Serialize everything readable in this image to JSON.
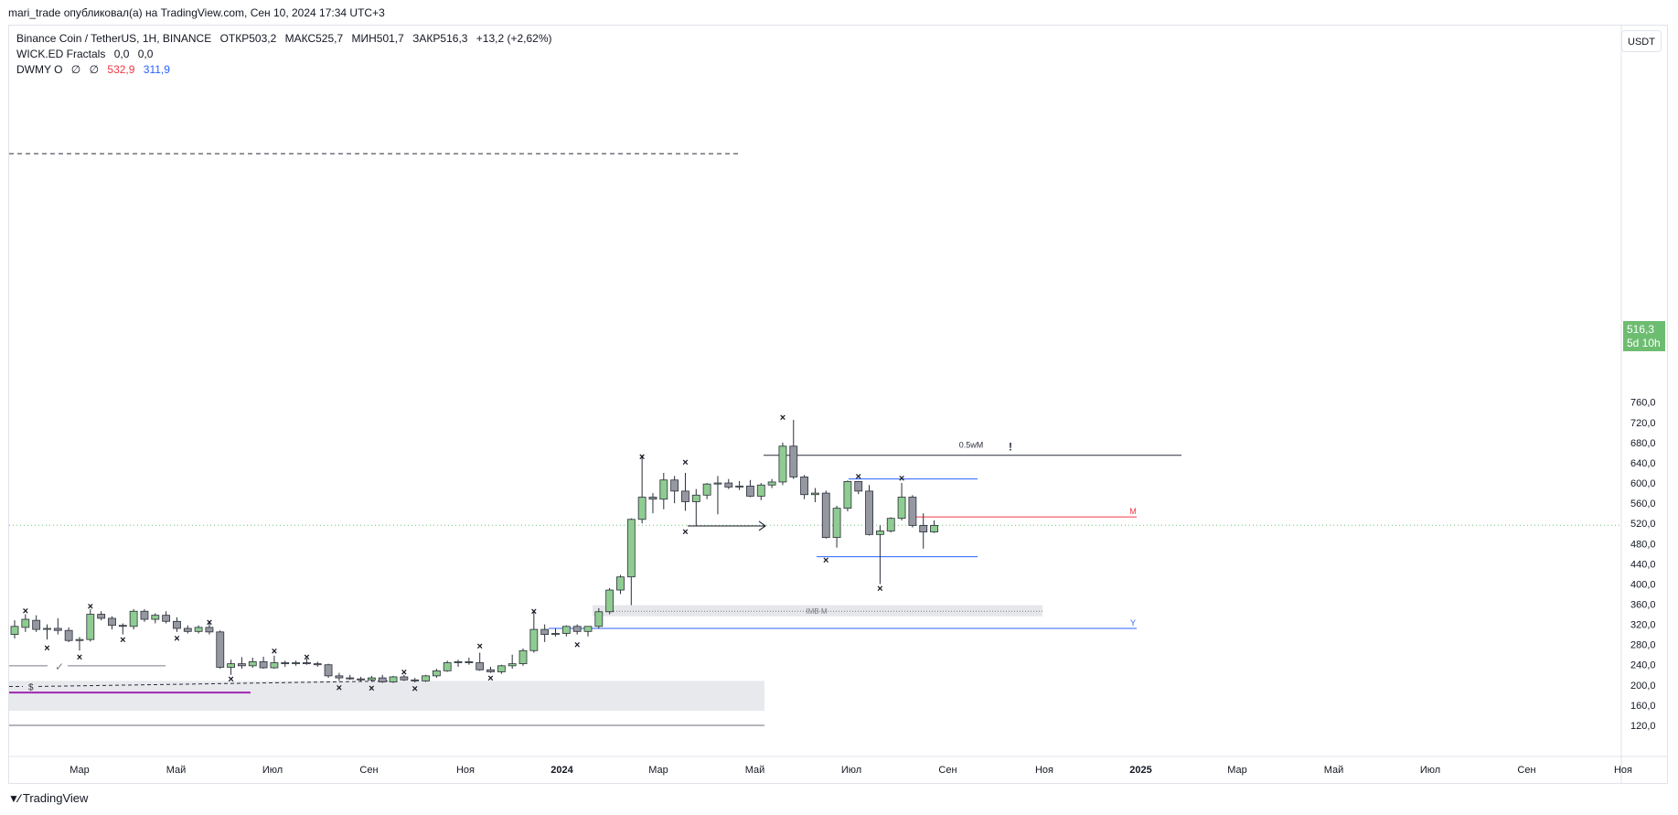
{
  "header": {
    "published": "mari_trade опубликовал(а) на TradingView.com, Сен 10, 2024 17:34 UTC+3"
  },
  "legend": {
    "symbol": "Binance Coin / TetherUS, 1H, BINANCE",
    "open": "ОТКР503,2",
    "high": "МАКС525,7",
    "low": "МИН501,7",
    "close": "ЗАКР516,3",
    "change": "+13,2 (+2,62%)",
    "ind1_name": "WICK.ED Fractals",
    "ind1_v1": "0,0",
    "ind1_v2": "0,0",
    "ind2_name": "DWMY O",
    "ind2_v1": "∅",
    "ind2_v2": "∅",
    "ind2_v3": "532,9",
    "ind2_v4": "311,9"
  },
  "price_axis": {
    "currency": "USDT",
    "last_price": "516,3",
    "countdown": "5d 10h"
  },
  "footer": {
    "brand": "TradingView"
  },
  "colors": {
    "up": "#8fcc91",
    "down": "#9598a1",
    "outline": "#2a2e39",
    "blue_level": "#2962ff",
    "red_level": "#f23645",
    "purple_level": "#9c27b0"
  },
  "chart_data": {
    "type": "candlestick",
    "symbol": "Binance Coin / TetherUS",
    "ylim": [
      100,
      780
    ],
    "y_ticks": [
      120,
      160,
      200,
      240,
      280,
      320,
      360,
      400,
      440,
      480,
      520,
      560,
      600,
      640,
      680,
      720,
      760
    ],
    "y_tick_labels": [
      "120,0",
      "160,0",
      "200,0",
      "240,0",
      "280,0",
      "320,0",
      "360,0",
      "400,0",
      "440,0",
      "480,0",
      "520,0",
      "560,0",
      "600,0",
      "640,0",
      "680,0",
      "720,0",
      "760,0"
    ],
    "x_ticks": [
      {
        "label": "Мар",
        "bold": false
      },
      {
        "label": "Май",
        "bold": false
      },
      {
        "label": "Июл",
        "bold": false
      },
      {
        "label": "Сен",
        "bold": false
      },
      {
        "label": "Ноя",
        "bold": false
      },
      {
        "label": "2024",
        "bold": true
      },
      {
        "label": "Мар",
        "bold": false
      },
      {
        "label": "Май",
        "bold": false
      },
      {
        "label": "Июл",
        "bold": false
      },
      {
        "label": "Сен",
        "bold": false
      },
      {
        "label": "Ноя",
        "bold": false
      },
      {
        "label": "2025",
        "bold": true
      },
      {
        "label": "Мар",
        "bold": false
      },
      {
        "label": "Май",
        "bold": false
      },
      {
        "label": "Июл",
        "bold": false
      },
      {
        "label": "Сен",
        "bold": false
      },
      {
        "label": "Ноя",
        "bold": false
      }
    ],
    "candles": [
      {
        "o": 300,
        "h": 328,
        "l": 292,
        "c": 316
      },
      {
        "o": 314,
        "h": 340,
        "l": 305,
        "c": 330
      },
      {
        "o": 328,
        "h": 338,
        "l": 305,
        "c": 310
      },
      {
        "o": 310,
        "h": 320,
        "l": 290,
        "c": 312
      },
      {
        "o": 312,
        "h": 332,
        "l": 300,
        "c": 308
      },
      {
        "o": 308,
        "h": 314,
        "l": 285,
        "c": 288
      },
      {
        "o": 288,
        "h": 295,
        "l": 268,
        "c": 290
      },
      {
        "o": 290,
        "h": 350,
        "l": 286,
        "c": 340
      },
      {
        "o": 340,
        "h": 346,
        "l": 328,
        "c": 332
      },
      {
        "o": 332,
        "h": 336,
        "l": 310,
        "c": 318
      },
      {
        "o": 318,
        "h": 322,
        "l": 300,
        "c": 316
      },
      {
        "o": 316,
        "h": 350,
        "l": 310,
        "c": 346
      },
      {
        "o": 346,
        "h": 350,
        "l": 325,
        "c": 330
      },
      {
        "o": 330,
        "h": 342,
        "l": 322,
        "c": 338
      },
      {
        "o": 338,
        "h": 346,
        "l": 322,
        "c": 326
      },
      {
        "o": 326,
        "h": 334,
        "l": 305,
        "c": 312
      },
      {
        "o": 312,
        "h": 318,
        "l": 302,
        "c": 306
      },
      {
        "o": 306,
        "h": 318,
        "l": 302,
        "c": 314
      },
      {
        "o": 314,
        "h": 322,
        "l": 300,
        "c": 305
      },
      {
        "o": 305,
        "h": 308,
        "l": 232,
        "c": 235
      },
      {
        "o": 235,
        "h": 250,
        "l": 220,
        "c": 242
      },
      {
        "o": 242,
        "h": 255,
        "l": 232,
        "c": 238
      },
      {
        "o": 238,
        "h": 254,
        "l": 234,
        "c": 246
      },
      {
        "o": 246,
        "h": 256,
        "l": 232,
        "c": 234
      },
      {
        "o": 234,
        "h": 258,
        "l": 232,
        "c": 244
      },
      {
        "o": 244,
        "h": 248,
        "l": 236,
        "c": 242
      },
      {
        "o": 242,
        "h": 248,
        "l": 238,
        "c": 244
      },
      {
        "o": 244,
        "h": 252,
        "l": 240,
        "c": 242
      },
      {
        "o": 242,
        "h": 246,
        "l": 236,
        "c": 240
      },
      {
        "o": 240,
        "h": 242,
        "l": 214,
        "c": 218
      },
      {
        "o": 218,
        "h": 224,
        "l": 208,
        "c": 214
      },
      {
        "o": 214,
        "h": 220,
        "l": 210,
        "c": 212
      },
      {
        "o": 212,
        "h": 216,
        "l": 206,
        "c": 210
      },
      {
        "o": 210,
        "h": 218,
        "l": 206,
        "c": 214
      },
      {
        "o": 214,
        "h": 220,
        "l": 204,
        "c": 206
      },
      {
        "o": 206,
        "h": 218,
        "l": 204,
        "c": 216
      },
      {
        "o": 216,
        "h": 220,
        "l": 208,
        "c": 210
      },
      {
        "o": 210,
        "h": 214,
        "l": 205,
        "c": 208
      },
      {
        "o": 208,
        "h": 220,
        "l": 206,
        "c": 218
      },
      {
        "o": 218,
        "h": 232,
        "l": 214,
        "c": 228
      },
      {
        "o": 228,
        "h": 248,
        "l": 226,
        "c": 244
      },
      {
        "o": 244,
        "h": 250,
        "l": 236,
        "c": 246
      },
      {
        "o": 246,
        "h": 254,
        "l": 240,
        "c": 244
      },
      {
        "o": 244,
        "h": 264,
        "l": 228,
        "c": 230
      },
      {
        "o": 230,
        "h": 236,
        "l": 224,
        "c": 226
      },
      {
        "o": 226,
        "h": 240,
        "l": 222,
        "c": 238
      },
      {
        "o": 238,
        "h": 260,
        "l": 232,
        "c": 242
      },
      {
        "o": 242,
        "h": 272,
        "l": 238,
        "c": 268
      },
      {
        "o": 268,
        "h": 345,
        "l": 264,
        "c": 310
      },
      {
        "o": 310,
        "h": 320,
        "l": 285,
        "c": 300
      },
      {
        "o": 300,
        "h": 312,
        "l": 296,
        "c": 302
      },
      {
        "o": 302,
        "h": 318,
        "l": 296,
        "c": 316
      },
      {
        "o": 316,
        "h": 320,
        "l": 300,
        "c": 306
      },
      {
        "o": 306,
        "h": 316,
        "l": 296,
        "c": 316
      },
      {
        "o": 316,
        "h": 352,
        "l": 312,
        "c": 345
      },
      {
        "o": 345,
        "h": 392,
        "l": 340,
        "c": 388
      },
      {
        "o": 388,
        "h": 418,
        "l": 380,
        "c": 414
      },
      {
        "o": 414,
        "h": 530,
        "l": 358,
        "c": 528
      },
      {
        "o": 528,
        "h": 655,
        "l": 520,
        "c": 572
      },
      {
        "o": 572,
        "h": 580,
        "l": 540,
        "c": 568
      },
      {
        "o": 568,
        "h": 620,
        "l": 548,
        "c": 606
      },
      {
        "o": 606,
        "h": 614,
        "l": 560,
        "c": 584
      },
      {
        "o": 584,
        "h": 620,
        "l": 545,
        "c": 563
      },
      {
        "o": 563,
        "h": 588,
        "l": 516,
        "c": 576
      },
      {
        "o": 576,
        "h": 600,
        "l": 568,
        "c": 598
      },
      {
        "o": 598,
        "h": 614,
        "l": 538,
        "c": 600
      },
      {
        "o": 600,
        "h": 608,
        "l": 588,
        "c": 592
      },
      {
        "o": 592,
        "h": 604,
        "l": 586,
        "c": 594
      },
      {
        "o": 594,
        "h": 606,
        "l": 572,
        "c": 574
      },
      {
        "o": 574,
        "h": 600,
        "l": 566,
        "c": 596
      },
      {
        "o": 596,
        "h": 608,
        "l": 590,
        "c": 602
      },
      {
        "o": 602,
        "h": 680,
        "l": 596,
        "c": 673
      },
      {
        "o": 673,
        "h": 725,
        "l": 608,
        "c": 612
      },
      {
        "o": 612,
        "h": 616,
        "l": 568,
        "c": 577
      },
      {
        "o": 577,
        "h": 590,
        "l": 562,
        "c": 580
      },
      {
        "o": 580,
        "h": 585,
        "l": 490,
        "c": 492
      },
      {
        "o": 492,
        "h": 555,
        "l": 472,
        "c": 550
      },
      {
        "o": 550,
        "h": 605,
        "l": 544,
        "c": 603
      },
      {
        "o": 603,
        "h": 604,
        "l": 578,
        "c": 584
      },
      {
        "o": 584,
        "h": 596,
        "l": 496,
        "c": 498
      },
      {
        "o": 498,
        "h": 516,
        "l": 400,
        "c": 505
      },
      {
        "o": 505,
        "h": 532,
        "l": 502,
        "c": 530
      },
      {
        "o": 530,
        "h": 600,
        "l": 526,
        "c": 572
      },
      {
        "o": 572,
        "h": 576,
        "l": 512,
        "c": 516
      },
      {
        "o": 516,
        "h": 540,
        "l": 470,
        "c": 503
      },
      {
        "o": 503,
        "h": 526,
        "l": 501,
        "c": 516
      }
    ],
    "fractals": [
      {
        "i": 1,
        "v": 347
      },
      {
        "i": 3,
        "v": 274
      },
      {
        "i": 6,
        "v": 256
      },
      {
        "i": 7,
        "v": 356
      },
      {
        "i": 10,
        "v": 290
      },
      {
        "i": 15,
        "v": 293
      },
      {
        "i": 18,
        "v": 325
      },
      {
        "i": 20,
        "v": 212
      },
      {
        "i": 24,
        "v": 268
      },
      {
        "i": 27,
        "v": 256
      },
      {
        "i": 30,
        "v": 195
      },
      {
        "i": 33,
        "v": 194
      },
      {
        "i": 36,
        "v": 226
      },
      {
        "i": 37,
        "v": 193
      },
      {
        "i": 43,
        "v": 278
      },
      {
        "i": 44,
        "v": 214
      },
      {
        "i": 48,
        "v": 346
      },
      {
        "i": 52,
        "v": 280
      },
      {
        "i": 58,
        "v": 653
      },
      {
        "i": 62,
        "v": 642
      },
      {
        "i": 62,
        "v": 504
      },
      {
        "i": 71,
        "v": 731
      },
      {
        "i": 75,
        "v": 448
      },
      {
        "i": 78,
        "v": 614
      },
      {
        "i": 80,
        "v": 392
      },
      {
        "i": 82,
        "v": 610
      }
    ],
    "levels": [
      {
        "label": "0.5wM",
        "value": 655
      },
      {
        "label": "M",
        "value": 532.9
      },
      {
        "label": "Y",
        "value": 311.9
      },
      {
        "label": "IMB M",
        "value": 345
      }
    ],
    "annotations": [
      {
        "label": "$"
      },
      {
        "label": "✓"
      },
      {
        "label": "!"
      }
    ]
  }
}
